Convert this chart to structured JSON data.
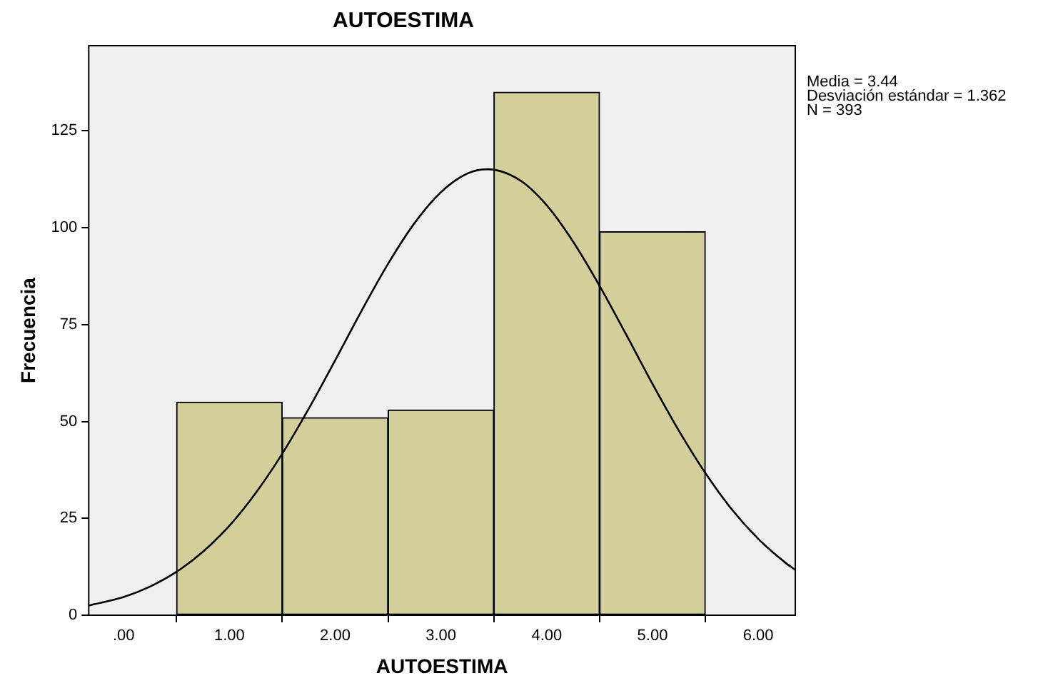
{
  "chart_data": {
    "type": "histogram",
    "title": "AUTOESTIMA",
    "xlabel": "AUTOESTIMA",
    "ylabel": "Frecuencia",
    "series": [
      {
        "bins": [
          0.5,
          1.5,
          2.5,
          3.5,
          4.5,
          5.5
        ],
        "values": [
          55,
          51,
          53,
          135,
          99
        ],
        "color": "#d3cf9a"
      },
      {
        "type": "line",
        "color": "#000000",
        "x": [
          -0.33,
          0,
          0.25,
          0.5,
          0.75,
          1,
          1.25,
          1.5,
          1.75,
          2,
          2.25,
          2.5,
          2.75,
          3,
          3.25,
          3.44,
          3.75,
          4,
          4.25,
          4.5,
          4.75,
          5,
          5.25,
          5.5,
          5.75,
          6,
          6.25,
          6.35
        ],
        "values": [
          2.5,
          4.7,
          7.4,
          11.2,
          16.4,
          23.1,
          31.6,
          41.7,
          53.3,
          65.8,
          78.6,
          90.7,
          101.2,
          109.2,
          114.0,
          115.1,
          112.2,
          105.8,
          96.4,
          85.0,
          72.5,
          59.7,
          47.6,
          36.7,
          27.3,
          19.7,
          13.7,
          11.7
        ]
      }
    ],
    "xlim": [
      -0.33,
      6.35
    ],
    "xticks": [
      {
        "value": 0,
        "label": ".00"
      },
      {
        "value": 1,
        "label": "1.00"
      },
      {
        "value": 2,
        "label": "2.00"
      },
      {
        "value": 3,
        "label": "3.00"
      },
      {
        "value": 4,
        "label": "4.00"
      },
      {
        "value": 5,
        "label": "5.00"
      },
      {
        "value": 6,
        "label": "6.00"
      }
    ],
    "ylim": [
      0,
      147
    ],
    "yticks": [
      0,
      25,
      50,
      75,
      100,
      125
    ],
    "grid": false,
    "legend": false,
    "annotations": [
      "Media = 3.44",
      "Desviación estándar = 1.362",
      "N = 393"
    ]
  }
}
